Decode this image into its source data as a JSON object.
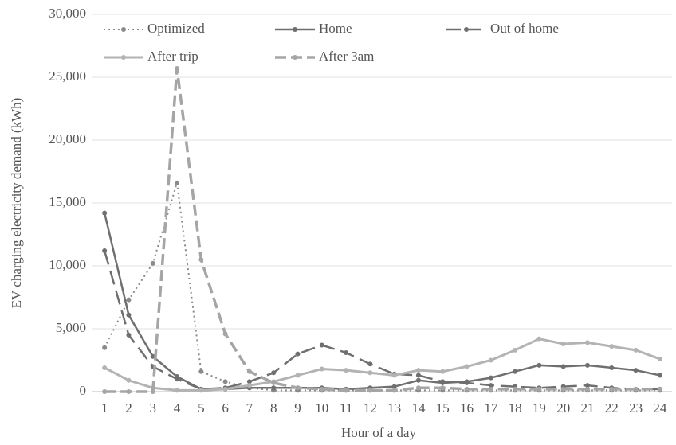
{
  "chart_data": {
    "type": "line",
    "x_label": "Hour of a day",
    "y_label": "EV charging electricity demand (kWh)",
    "categories": [
      "1",
      "2",
      "3",
      "4",
      "5",
      "6",
      "7",
      "8",
      "9",
      "10",
      "11",
      "12",
      "13",
      "14",
      "15",
      "16",
      "17",
      "18",
      "19",
      "20",
      "21",
      "22",
      "23",
      "24"
    ],
    "ylim": [
      0,
      30000
    ],
    "yticks": [
      0,
      {
        "value": 5000,
        "label": "5,000"
      },
      {
        "value": 10000,
        "label": "10,000"
      },
      {
        "value": 15000,
        "label": "15,000"
      },
      {
        "value": 20000,
        "label": "20,000"
      },
      {
        "value": 25000,
        "label": "25,000"
      },
      {
        "value": 30000,
        "label": "30,000"
      }
    ],
    "grid": true,
    "series": [
      {
        "name": "Optimized",
        "color": "#8a8a8a",
        "dash": "2,4",
        "width": 2,
        "values": [
          3500,
          7300,
          10200,
          16600,
          1600,
          800,
          300,
          100,
          100,
          100,
          100,
          100,
          100,
          100,
          100,
          100,
          100,
          100,
          100,
          100,
          100,
          100,
          100,
          100
        ]
      },
      {
        "name": "Home",
        "color": "#6f6f6f",
        "dash": "",
        "width": 2.5,
        "values": [
          14200,
          6100,
          2800,
          1200,
          200,
          200,
          300,
          300,
          300,
          300,
          200,
          300,
          400,
          900,
          700,
          800,
          1100,
          1600,
          2100,
          2000,
          2100,
          1900,
          1700,
          1300
        ]
      },
      {
        "name": "Out of home",
        "color": "#6f6f6f",
        "dash": "18,8",
        "width": 2.5,
        "values": [
          11200,
          4500,
          2000,
          1000,
          200,
          300,
          800,
          1500,
          3000,
          3700,
          3100,
          2200,
          1400,
          1300,
          800,
          700,
          500,
          400,
          300,
          400,
          500,
          300,
          200,
          200
        ]
      },
      {
        "name": "After trip",
        "color": "#b3b3b3",
        "dash": "",
        "width": 3,
        "values": [
          1900,
          900,
          300,
          100,
          100,
          200,
          500,
          800,
          1300,
          1800,
          1700,
          1500,
          1300,
          1700,
          1600,
          2000,
          2500,
          3300,
          4200,
          3800,
          3900,
          3600,
          3300,
          2600
        ]
      },
      {
        "name": "After 3am",
        "color": "#a5a5a5",
        "dash": "14,6",
        "width": 3.5,
        "values": [
          0,
          0,
          0,
          25700,
          10500,
          4600,
          1600,
          700,
          300,
          200,
          100,
          100,
          100,
          300,
          300,
          200,
          200,
          200,
          200,
          200,
          200,
          200,
          200,
          200
        ]
      }
    ]
  }
}
